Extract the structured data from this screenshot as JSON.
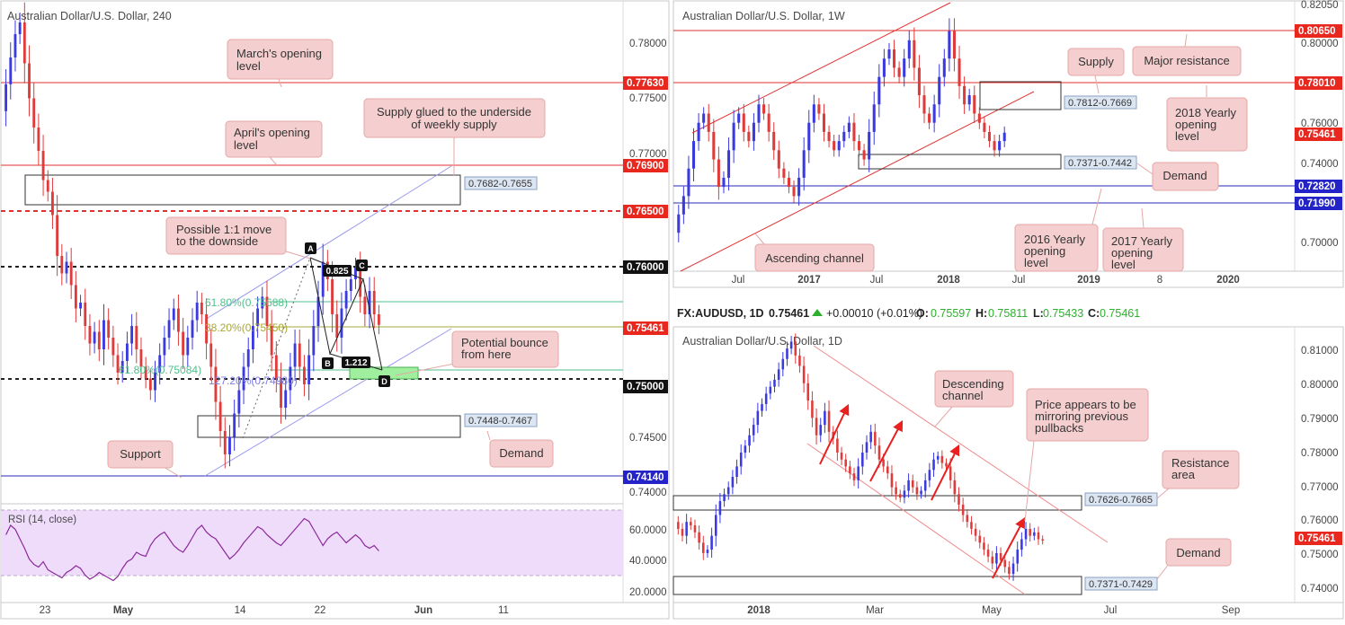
{
  "colors": {
    "bull": "#3a3ae0",
    "bear": "#e03b3b",
    "red_line": "#e03232",
    "blue_line": "#2828b8",
    "channel_line": "#9a9aee",
    "callout_bg": "#f5cfcf",
    "callout_border": "#e6a7a7",
    "price_tag_red": "#e8281f",
    "price_tag_blue": "#2323c8",
    "rsi_bg": "#eedcfa",
    "rsi_line": "#8b2a9a",
    "fib_green": "#4fbf8c",
    "fib_olive": "#a7a73a",
    "demand_green": "#9fef9f"
  },
  "panels": {
    "h4": {
      "title": "Australian Dollar/U.S. Dollar, 240",
      "y_axis_ticks": [
        "0.78000",
        "0.77500",
        "0.77000",
        "0.74500",
        "0.74000"
      ],
      "price_tags": [
        {
          "label": "0.77630",
          "color": "red"
        },
        {
          "label": "0.76900",
          "color": "red"
        },
        {
          "label": "0.76500",
          "color": "red"
        },
        {
          "label": "0.76000",
          "color": "black"
        },
        {
          "label": "0.75461",
          "color": "red"
        },
        {
          "label": "0.75000",
          "color": "black"
        },
        {
          "label": "0.74140",
          "color": "blue"
        }
      ],
      "x_axis_ticks": [
        "23",
        "May",
        "14",
        "22",
        "Jun",
        "11"
      ],
      "zone_labels": [
        "0.7682-0.7655",
        "0.7448-0.7467"
      ],
      "fib_labels": [
        "61.80%(0.75688)",
        "38.20%(0.75450)",
        "61.80%(0.75084)",
        "127.20%(0.74980)"
      ],
      "abcd": {
        "A": "A",
        "B": "B",
        "C": "C",
        "D": "D",
        "bc_ratio": "0.825",
        "cd_ratio": "1.212"
      },
      "callouts": [
        {
          "id": "march",
          "text": [
            "March's opening",
            "level"
          ]
        },
        {
          "id": "april",
          "text": [
            "April's opening",
            "level"
          ]
        },
        {
          "id": "supply",
          "text": [
            "Supply glued to the underside",
            "of weekly supply"
          ]
        },
        {
          "id": "move",
          "text": [
            "Possible 1:1 move",
            "to the downside"
          ]
        },
        {
          "id": "bounce",
          "text": [
            "Potential bounce",
            "from here"
          ]
        },
        {
          "id": "support",
          "text": [
            "Support"
          ]
        },
        {
          "id": "demand",
          "text": [
            "Demand"
          ]
        }
      ],
      "rsi": {
        "title": "RSI (14, close)",
        "ticks": [
          "60.0000",
          "40.0000",
          "20.0000"
        ]
      }
    },
    "weekly": {
      "title": "Australian Dollar/U.S. Dollar, 1W",
      "y_axis_ticks": [
        "0.82050",
        "0.80000",
        "0.76000",
        "0.74000",
        "0.70000"
      ],
      "price_tags": [
        {
          "label": "0.80650",
          "color": "red"
        },
        {
          "label": "0.78010",
          "color": "red"
        },
        {
          "label": "0.75461",
          "color": "red"
        },
        {
          "label": "0.72820",
          "color": "blue"
        },
        {
          "label": "0.71990",
          "color": "blue"
        }
      ],
      "x_axis_ticks": [
        "Jul",
        "2017",
        "Jul",
        "2018",
        "Jul",
        "2019",
        "8",
        "2020"
      ],
      "zone_labels": [
        "0.7812-0.7669",
        "0.7371-0.7442"
      ],
      "callouts": [
        {
          "id": "supply",
          "text": [
            "Supply"
          ]
        },
        {
          "id": "major",
          "text": [
            "Major resistance"
          ]
        },
        {
          "id": "y2018",
          "text": [
            "2018 Yearly",
            "opening",
            "level"
          ]
        },
        {
          "id": "demand",
          "text": [
            "Demand"
          ]
        },
        {
          "id": "y2016",
          "text": [
            "2016 Yearly",
            "opening",
            "level"
          ]
        },
        {
          "id": "y2017",
          "text": [
            "2017 Yearly",
            "opening",
            "level"
          ]
        },
        {
          "id": "channel",
          "text": [
            "Ascending channel"
          ]
        }
      ]
    },
    "daily": {
      "header": {
        "symbol": "FX:AUDUSD, 1D",
        "price": "0.75461",
        "change": "+0.00010 (+0.01%)",
        "o_label": "O:",
        "o": "0.75597",
        "h_label": "H:",
        "h": "0.75811",
        "l_label": "L:",
        "l": "0.75433",
        "c_label": "C:",
        "c": "0.75461"
      },
      "title": "Australian Dollar/U.S. Dollar, 1D",
      "y_axis_ticks": [
        "0.81000",
        "0.80000",
        "0.79000",
        "0.78000",
        "0.77000",
        "0.76000",
        "0.75000",
        "0.74000"
      ],
      "price_tags": [
        {
          "label": "0.75461",
          "color": "red"
        }
      ],
      "x_axis_ticks": [
        "2018",
        "Mar",
        "May",
        "Jul",
        "Sep"
      ],
      "zone_labels": [
        "0.7626-0.7665",
        "0.7371-0.7429"
      ],
      "callouts": [
        {
          "id": "desc",
          "text": [
            "Descending",
            "channel"
          ]
        },
        {
          "id": "mirror",
          "text": [
            "Price appears to be",
            "mirroring previous",
            "pullbacks"
          ]
        },
        {
          "id": "resist",
          "text": [
            "Resistance",
            "area"
          ]
        },
        {
          "id": "demand",
          "text": [
            "Demand"
          ]
        }
      ]
    }
  },
  "chart_data": [
    {
      "type": "candlestick",
      "title": "Australian Dollar/U.S. Dollar, 240",
      "ylim": [
        0.7405,
        0.7815
      ],
      "horizontal_levels": [
        0.7763,
        0.769,
        0.765,
        0.76,
        0.7546,
        0.75,
        0.7414
      ],
      "zones": [
        {
          "label": "0.7682-0.7655",
          "low": 0.7655,
          "high": 0.7682
        },
        {
          "label": "0.7448-0.7467",
          "low": 0.7448,
          "high": 0.7467
        }
      ],
      "fib_levels": [
        0.75688,
        0.7545,
        0.75084,
        0.7498
      ],
      "pattern": "ABCD",
      "close": [
        0.7752,
        0.7775,
        0.7795,
        0.7805,
        0.777,
        0.774,
        0.7715,
        0.7695,
        0.767,
        0.766,
        0.764,
        0.7605,
        0.759,
        0.76,
        0.758,
        0.756,
        0.7565,
        0.7545,
        0.753,
        0.754,
        0.7525,
        0.755,
        0.7535,
        0.752,
        0.7505,
        0.7515,
        0.753,
        0.7545,
        0.7525,
        0.751,
        0.75,
        0.749,
        0.7505,
        0.752,
        0.7535,
        0.755,
        0.756,
        0.754,
        0.752,
        0.7535,
        0.755,
        0.7565,
        0.7555,
        0.753,
        0.751,
        0.748,
        0.7455,
        0.7435,
        0.745,
        0.747,
        0.749,
        0.751,
        0.7525,
        0.7545,
        0.756,
        0.757,
        0.7545,
        0.752,
        0.75,
        0.7475,
        0.749,
        0.751,
        0.753,
        0.751,
        0.7495,
        0.752,
        0.7545,
        0.757,
        0.76,
        0.7585,
        0.7555,
        0.7535,
        0.756,
        0.7575,
        0.7585,
        0.7595,
        0.757,
        0.7555,
        0.7575,
        0.7555,
        0.7546
      ],
      "rsi": {
        "ylim": [
          15,
          75
        ],
        "values": [
          58,
          65,
          62,
          55,
          48,
          40,
          36,
          34,
          38,
          32,
          30,
          28,
          26,
          30,
          32,
          35,
          33,
          28,
          25,
          27,
          30,
          28,
          26,
          24,
          27,
          33,
          38,
          40,
          45,
          43,
          42,
          50,
          55,
          58,
          60,
          55,
          50,
          47,
          45,
          50,
          56,
          62,
          65,
          60,
          57,
          55,
          50,
          45,
          40,
          43,
          47,
          52,
          56,
          60,
          64,
          62,
          58,
          55,
          52,
          50,
          54,
          58,
          62,
          66,
          70,
          68,
          62,
          56,
          50,
          55,
          58,
          60,
          56,
          52,
          55,
          58,
          55,
          50,
          48,
          50,
          46
        ]
      }
    },
    {
      "type": "candlestick",
      "title": "Australian Dollar/U.S. Dollar, 1W",
      "ylim": [
        0.68,
        0.825
      ],
      "horizontal_levels": [
        0.8065,
        0.7801,
        0.7546,
        0.7282,
        0.7199
      ],
      "zones": [
        {
          "label": "0.7812-0.7669",
          "low": 0.7669,
          "high": 0.7812
        },
        {
          "label": "0.7371-0.7442",
          "low": 0.7371,
          "high": 0.7442
        }
      ],
      "close": [
        0.71,
        0.72,
        0.735,
        0.75,
        0.76,
        0.765,
        0.755,
        0.74,
        0.725,
        0.73,
        0.745,
        0.76,
        0.765,
        0.755,
        0.75,
        0.76,
        0.77,
        0.765,
        0.755,
        0.745,
        0.735,
        0.73,
        0.725,
        0.72,
        0.73,
        0.745,
        0.76,
        0.77,
        0.765,
        0.755,
        0.75,
        0.745,
        0.75,
        0.755,
        0.76,
        0.75,
        0.745,
        0.74,
        0.755,
        0.77,
        0.785,
        0.795,
        0.8,
        0.79,
        0.785,
        0.795,
        0.805,
        0.79,
        0.775,
        0.765,
        0.76,
        0.77,
        0.785,
        0.795,
        0.81,
        0.795,
        0.78,
        0.77,
        0.775,
        0.765,
        0.76,
        0.755,
        0.75,
        0.745,
        0.75,
        0.7546
      ]
    },
    {
      "type": "candlestick",
      "title": "Australian Dollar/U.S. Dollar, 1D",
      "ylim": [
        0.737,
        0.816
      ],
      "zones": [
        {
          "label": "0.7626-0.7665",
          "low": 0.7626,
          "high": 0.7665
        },
        {
          "label": "0.7371-0.7429",
          "low": 0.7371,
          "high": 0.7429
        }
      ],
      "close": [
        0.758,
        0.756,
        0.76,
        0.759,
        0.757,
        0.754,
        0.751,
        0.752,
        0.756,
        0.762,
        0.766,
        0.768,
        0.77,
        0.773,
        0.776,
        0.78,
        0.782,
        0.785,
        0.788,
        0.792,
        0.794,
        0.797,
        0.799,
        0.801,
        0.804,
        0.807,
        0.81,
        0.812,
        0.808,
        0.805,
        0.8,
        0.795,
        0.79,
        0.785,
        0.788,
        0.792,
        0.786,
        0.784,
        0.78,
        0.778,
        0.776,
        0.774,
        0.772,
        0.776,
        0.78,
        0.783,
        0.786,
        0.782,
        0.778,
        0.776,
        0.774,
        0.77,
        0.768,
        0.767,
        0.769,
        0.772,
        0.77,
        0.768,
        0.769,
        0.772,
        0.775,
        0.778,
        0.779,
        0.777,
        0.776,
        0.772,
        0.768,
        0.765,
        0.762,
        0.76,
        0.758,
        0.756,
        0.754,
        0.752,
        0.75,
        0.748,
        0.751,
        0.749,
        0.747,
        0.745,
        0.748,
        0.752,
        0.755,
        0.758,
        0.756,
        0.757,
        0.755,
        0.7546
      ]
    }
  ]
}
